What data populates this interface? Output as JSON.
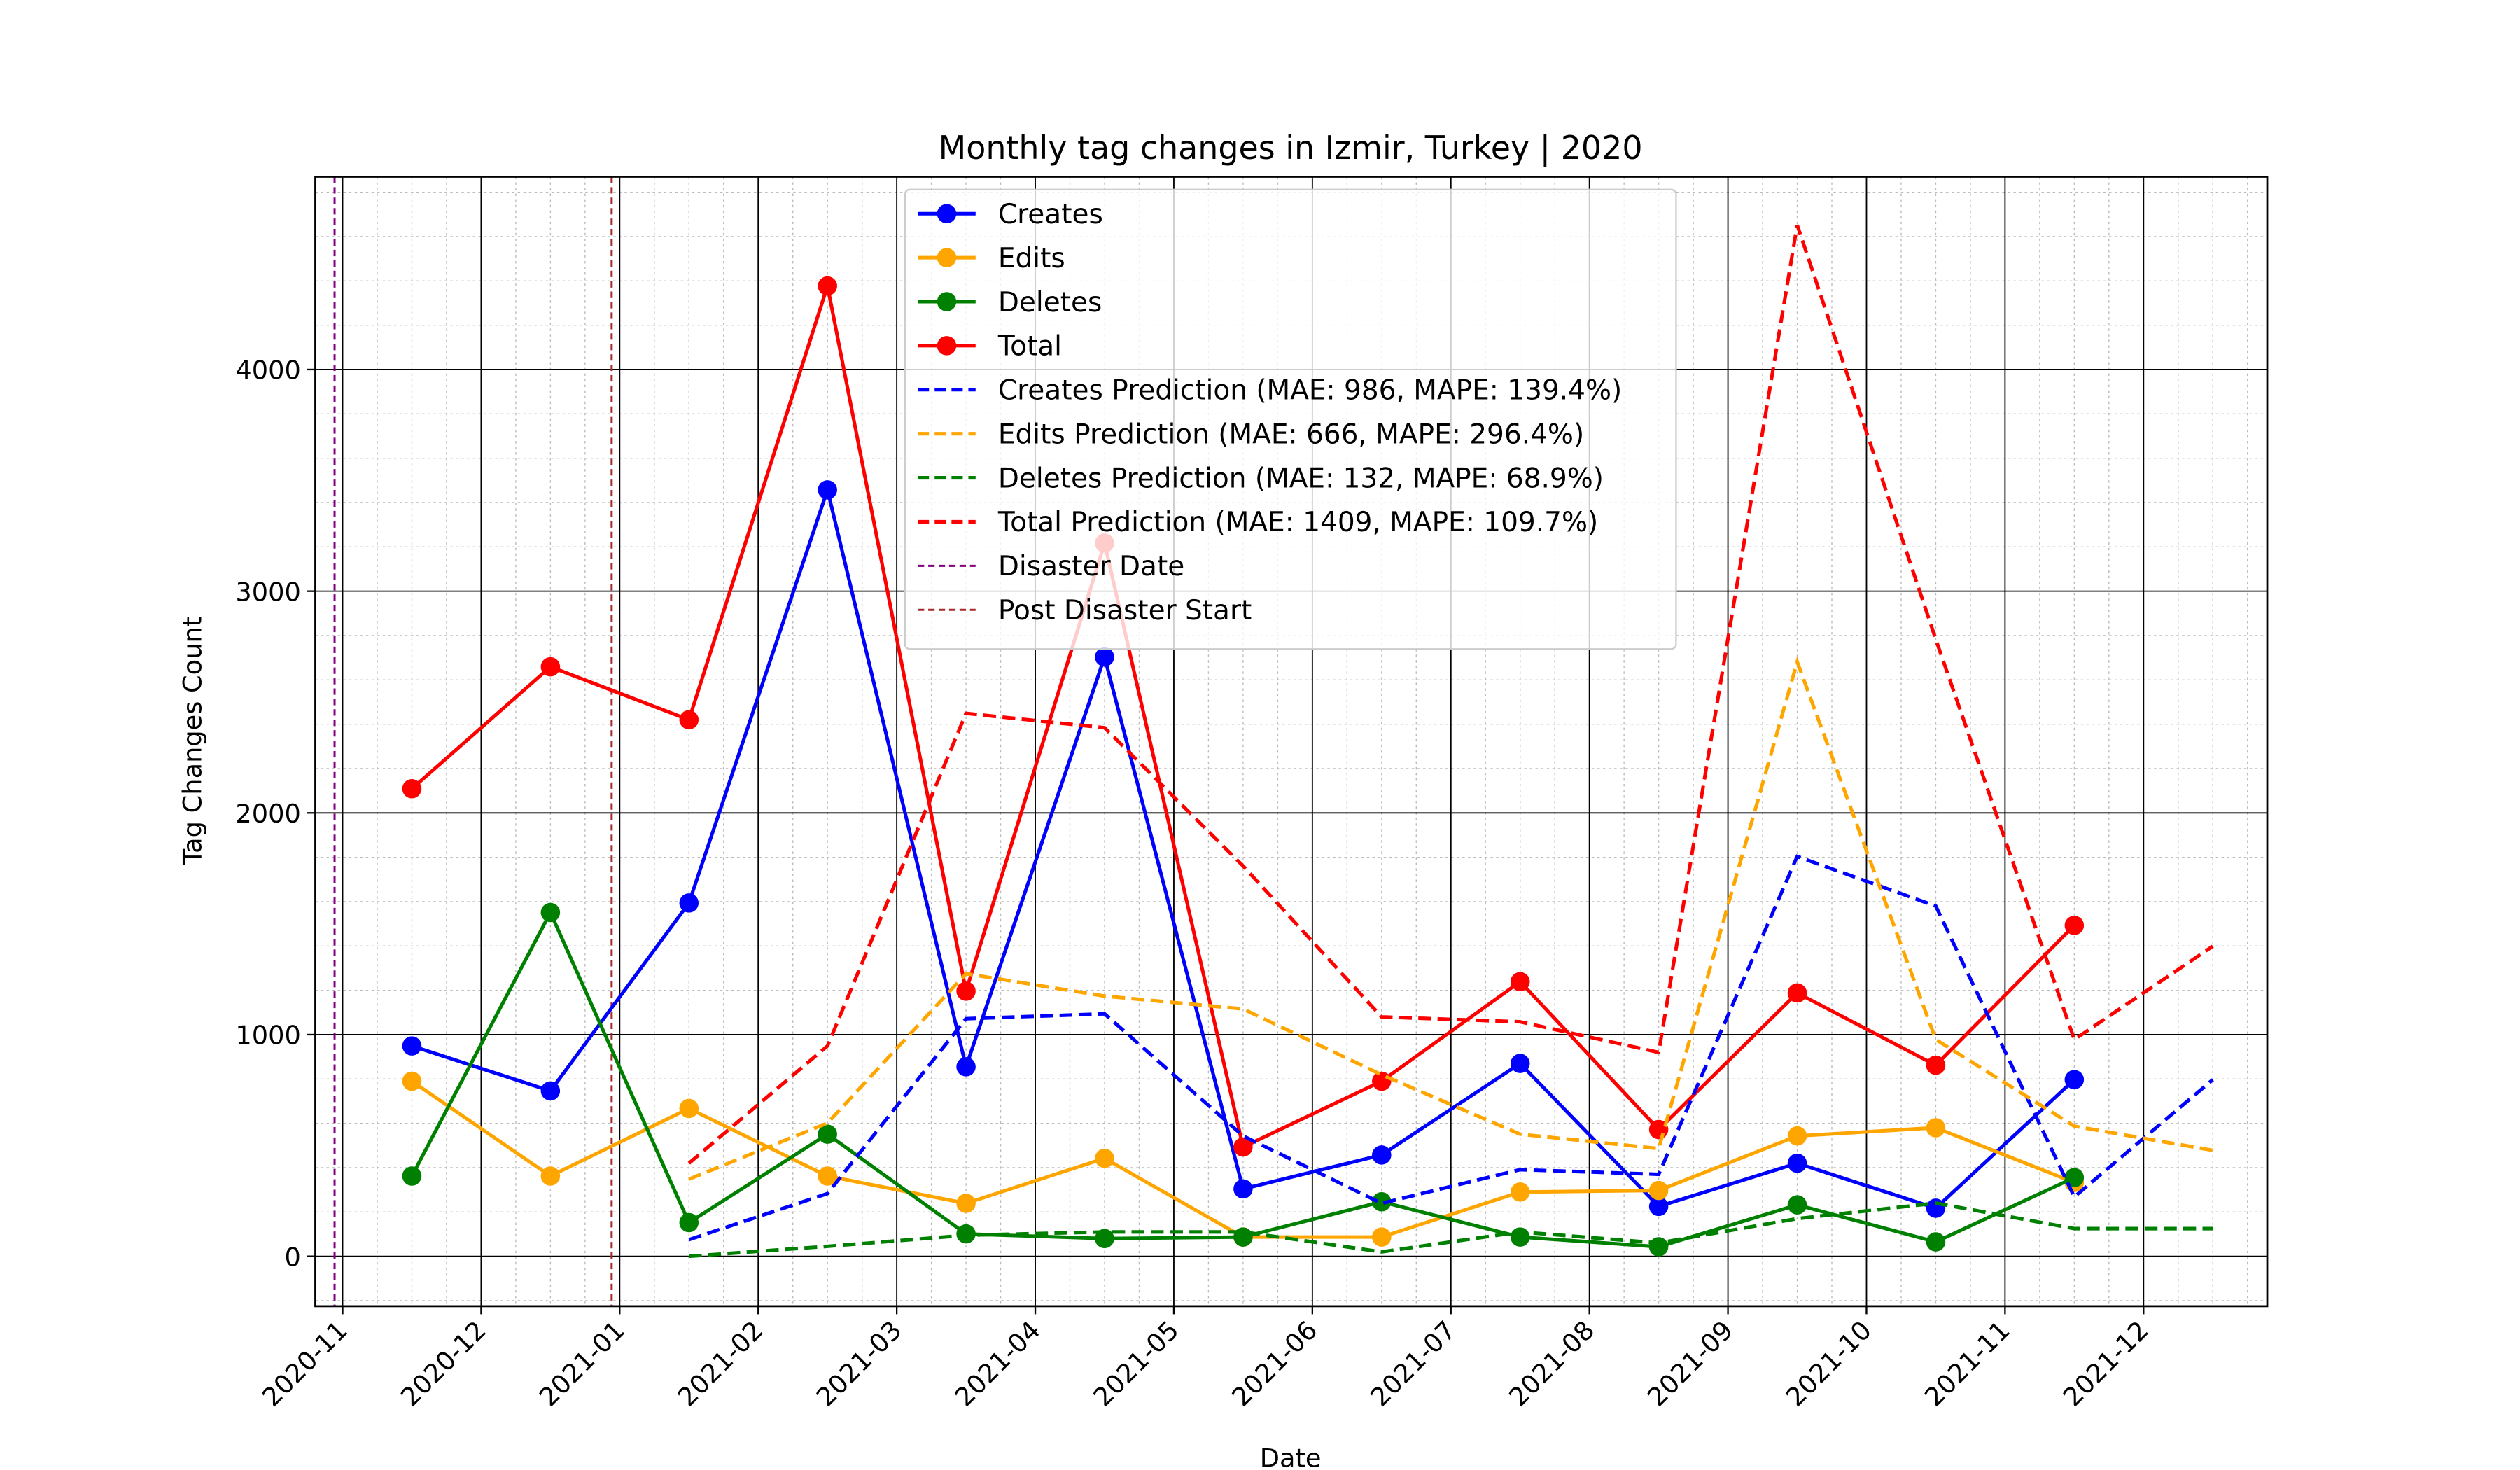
{
  "chart_data": {
    "type": "line",
    "title": "Monthly tag changes in Izmir, Turkey | 2020",
    "xlabel": "Date",
    "ylabel": "Tag Changes Count",
    "xticks": [
      "2020-11",
      "2020-12",
      "2021-01",
      "2021-02",
      "2021-03",
      "2021-04",
      "2021-05",
      "2021-06",
      "2021-07",
      "2021-08",
      "2021-09",
      "2021-10",
      "2021-11",
      "2021-12"
    ],
    "ylim": [
      -225,
      4870
    ],
    "yticks": [
      0,
      1000,
      2000,
      3000,
      4000
    ],
    "grid": "major+minor",
    "legend": "upper center",
    "series": [
      {
        "name": "Creates",
        "color": "#0000ff",
        "style": "solid",
        "marker": true,
        "x": [
          "2020-11",
          "2020-12",
          "2021-01",
          "2021-02",
          "2021-03",
          "2021-04",
          "2021-05",
          "2021-06",
          "2021-07",
          "2021-08",
          "2021-09",
          "2021-10",
          "2021-11"
        ],
        "values": [
          949,
          746,
          1594,
          3457,
          855,
          2703,
          304,
          457,
          870,
          225,
          420,
          217,
          797
        ]
      },
      {
        "name": "Edits",
        "color": "#ffa500",
        "style": "solid",
        "marker": true,
        "x": [
          "2020-11",
          "2020-12",
          "2021-01",
          "2021-02",
          "2021-03",
          "2021-04",
          "2021-05",
          "2021-06",
          "2021-07",
          "2021-08",
          "2021-09",
          "2021-10",
          "2021-11"
        ],
        "values": [
          790,
          362,
          667,
          362,
          239,
          442,
          87,
          87,
          290,
          297,
          543,
          580,
          333
        ]
      },
      {
        "name": "Deletes",
        "color": "#008000",
        "style": "solid",
        "marker": true,
        "x": [
          "2020-11",
          "2020-12",
          "2021-01",
          "2021-02",
          "2021-03",
          "2021-04",
          "2021-05",
          "2021-06",
          "2021-07",
          "2021-08",
          "2021-09",
          "2021-10",
          "2021-11"
        ],
        "values": [
          362,
          1551,
          152,
          551,
          101,
          80,
          87,
          246,
          87,
          43,
          232,
          65,
          355
        ]
      },
      {
        "name": "Total",
        "color": "#ff0000",
        "style": "solid",
        "marker": true,
        "x": [
          "2020-11",
          "2020-12",
          "2021-01",
          "2021-02",
          "2021-03",
          "2021-04",
          "2021-05",
          "2021-06",
          "2021-07",
          "2021-08",
          "2021-09",
          "2021-10",
          "2021-11"
        ],
        "values": [
          2109,
          2659,
          2420,
          4377,
          1196,
          3217,
          493,
          790,
          1239,
          572,
          1188,
          862,
          1493
        ]
      },
      {
        "name": "Creates Prediction (MAE: 986, MAPE: 139.4%)",
        "color": "#0000ff",
        "style": "dashed",
        "marker": false,
        "x": [
          "2021-01",
          "2021-02",
          "2021-03",
          "2021-04",
          "2021-05",
          "2021-06",
          "2021-07",
          "2021-08",
          "2021-09",
          "2021-10",
          "2021-11",
          "2021-12"
        ],
        "values": [
          75,
          283,
          1072,
          1094,
          543,
          239,
          391,
          370,
          1804,
          1580,
          268,
          797
        ]
      },
      {
        "name": "Edits Prediction (MAE: 666, MAPE: 296.4%)",
        "color": "#ffa500",
        "style": "dashed",
        "marker": false,
        "x": [
          "2021-01",
          "2021-02",
          "2021-03",
          "2021-04",
          "2021-05",
          "2021-06",
          "2021-07",
          "2021-08",
          "2021-09",
          "2021-10",
          "2021-11",
          "2021-12"
        ],
        "values": [
          348,
          601,
          1275,
          1174,
          1116,
          819,
          551,
          486,
          2681,
          978,
          587,
          478
        ]
      },
      {
        "name": "Deletes Prediction (MAE: 132, MAPE: 68.9%)",
        "color": "#008000",
        "style": "dashed",
        "marker": false,
        "x": [
          "2021-01",
          "2021-02",
          "2021-03",
          "2021-04",
          "2021-05",
          "2021-06",
          "2021-07",
          "2021-08",
          "2021-09",
          "2021-10",
          "2021-11",
          "2021-12"
        ],
        "values": [
          0,
          45,
          95,
          110,
          110,
          20,
          110,
          60,
          170,
          240,
          125,
          125
        ]
      },
      {
        "name": "Total Prediction (MAE: 1409, MAPE: 109.7%)",
        "color": "#ff0000",
        "style": "dashed",
        "marker": false,
        "x": [
          "2021-01",
          "2021-02",
          "2021-03",
          "2021-04",
          "2021-05",
          "2021-06",
          "2021-07",
          "2021-08",
          "2021-09",
          "2021-10",
          "2021-11",
          "2021-12"
        ],
        "values": [
          420,
          949,
          2449,
          2384,
          1761,
          1080,
          1058,
          920,
          4652,
          2783,
          978,
          1399
        ]
      }
    ],
    "vlines": [
      {
        "name": "Disaster Date",
        "x": "2020-10",
        "color": "#800080"
      },
      {
        "name": "Post Disaster Start",
        "x": "2020-12",
        "color": "#a52a2a"
      }
    ]
  }
}
